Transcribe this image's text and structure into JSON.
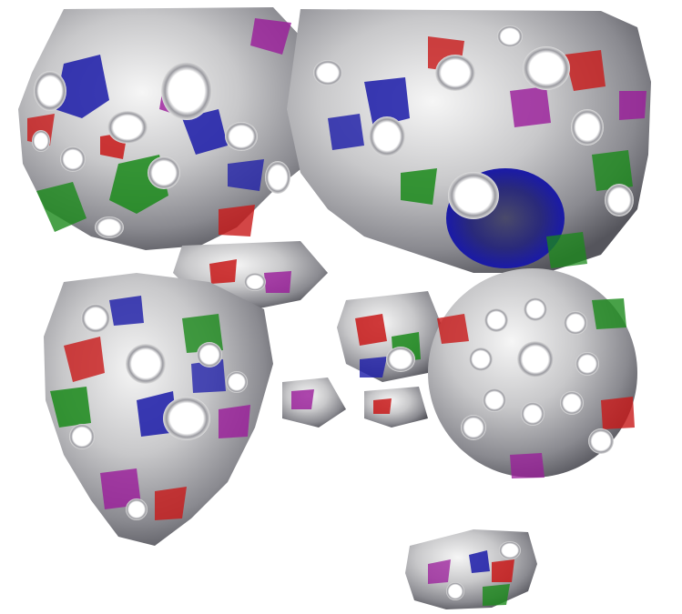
{
  "scene": {
    "background": "#ffffff",
    "surface_base": "#b9b9bb",
    "surface_highlight": "#f4f4f4",
    "surface_shadow": "#5a5a60",
    "patch_colors": {
      "red": "#c81818",
      "green": "#1a8a1a",
      "blue": "#1a1aa8",
      "magenta": "#9a1a9a"
    },
    "regions": [
      "upper-left-cluster",
      "upper-right-cluster",
      "lower-left-cluster",
      "lower-right-ring",
      "bottom-fragment"
    ]
  }
}
